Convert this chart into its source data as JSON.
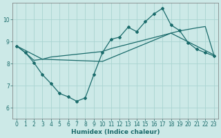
{
  "xlabel": "Humidex (Indice chaleur)",
  "xlim": [
    -0.5,
    23.5
  ],
  "ylim": [
    5.5,
    10.75
  ],
  "yticks": [
    6,
    7,
    8,
    9,
    10
  ],
  "xticks": [
    0,
    1,
    2,
    3,
    4,
    5,
    6,
    7,
    8,
    9,
    10,
    11,
    12,
    13,
    14,
    15,
    16,
    17,
    18,
    19,
    20,
    21,
    22,
    23
  ],
  "bg_color": "#cce9e7",
  "grid_color": "#aad4d1",
  "line_color": "#1a6b6b",
  "line1_x": [
    0,
    1,
    2,
    3,
    4,
    5,
    6,
    7,
    8,
    9,
    10,
    11,
    12,
    13,
    14,
    15,
    16,
    17,
    18,
    19,
    20,
    21,
    22,
    23
  ],
  "line1_y": [
    8.8,
    8.5,
    8.05,
    7.5,
    7.1,
    6.65,
    6.5,
    6.3,
    6.45,
    7.5,
    8.5,
    9.1,
    9.2,
    9.65,
    9.45,
    9.9,
    10.25,
    10.5,
    9.75,
    9.5,
    8.95,
    8.65,
    8.5,
    8.35
  ],
  "line2_x": [
    0,
    1,
    2,
    3,
    4,
    10,
    11,
    12,
    13,
    14,
    15,
    16,
    17,
    18,
    19,
    20,
    21,
    22,
    23
  ],
  "line2_y": [
    8.8,
    8.5,
    8.15,
    8.2,
    8.3,
    8.55,
    8.68,
    8.78,
    8.88,
    8.98,
    9.08,
    9.18,
    9.28,
    9.38,
    9.48,
    9.55,
    9.62,
    9.68,
    8.4
  ],
  "line3_x": [
    0,
    3,
    10,
    18,
    23
  ],
  "line3_y": [
    8.8,
    8.2,
    8.1,
    9.38,
    8.4
  ],
  "marker": "D",
  "markersize": 2.0,
  "linewidth": 0.9,
  "tick_fontsize": 5.5,
  "xlabel_fontsize": 6.5
}
